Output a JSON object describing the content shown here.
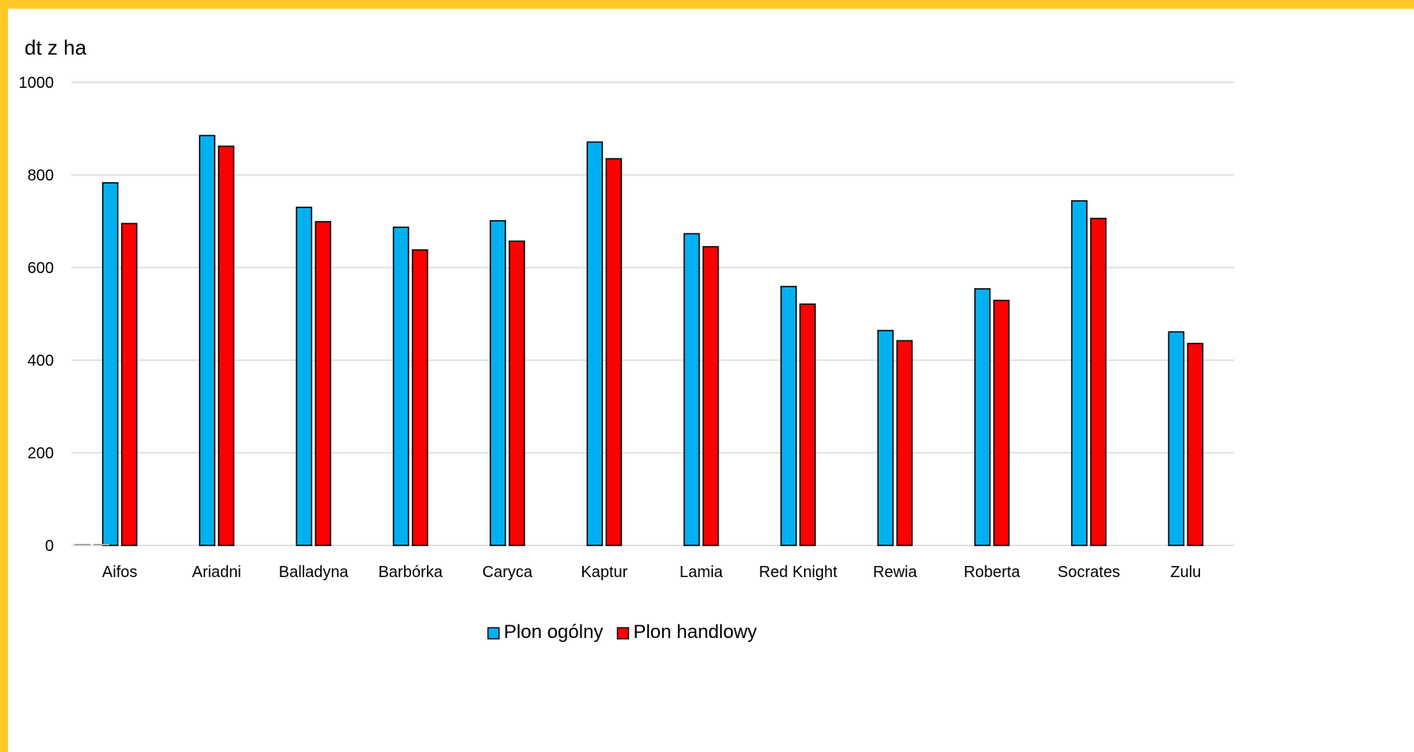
{
  "chart_data": {
    "type": "bar",
    "title": "",
    "unit_label": "dt z ha",
    "xlabel": "",
    "ylabel": "",
    "ylim": [
      0,
      1000
    ],
    "yticks": [
      0,
      200,
      400,
      600,
      800,
      1000
    ],
    "grid": true,
    "legend_position": "bottom",
    "categories": [
      "Aifos",
      "Ariadni",
      "Balladyna",
      "Barbórka",
      "Caryca",
      "Kaptur",
      "Lamia",
      "Red Knight",
      "Rewia",
      "Roberta",
      "Socrates",
      "Zulu"
    ],
    "series": [
      {
        "name": "Plon ogólny",
        "color": "#00B0F0",
        "values": [
          783,
          885,
          730,
          687,
          701,
          871,
          673,
          559,
          464,
          554,
          744,
          461
        ]
      },
      {
        "name": "Plon handlowy",
        "color": "#FF0000",
        "values": [
          695,
          862,
          699,
          638,
          657,
          835,
          645,
          521,
          442,
          529,
          706,
          436
        ]
      }
    ]
  }
}
